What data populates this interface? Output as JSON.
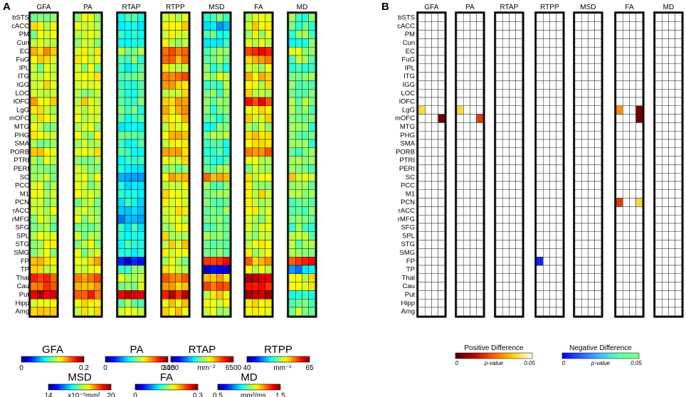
{
  "panels": {
    "a": "A",
    "b": "B"
  },
  "chart_data": [
    {
      "type": "heatmap",
      "panel": "A",
      "columns": [
        "GFA",
        "PA",
        "RTAP",
        "RTPP",
        "MSD",
        "FA",
        "MD"
      ],
      "rows": [
        "bSTS",
        "cACC",
        "PM",
        "Cun",
        "EC",
        "FuG",
        "IPL",
        "ITG",
        "IGG",
        "LOC",
        "lOFC",
        "LgG",
        "mOFC",
        "MTG",
        "PHG",
        "SMA",
        "PORB",
        "PTRI",
        "PERI",
        "SC",
        "PCC",
        "M1",
        "PCN",
        "rACC",
        "rMFG",
        "SFG",
        "SPL",
        "STG",
        "SMG",
        "FP",
        "TP",
        "Thal",
        "Cau",
        "Put",
        "Hipp",
        "Amg"
      ],
      "subcolumns_per_metric": 4,
      "value_scale": "normalized 0-1 along each metric colorbar",
      "row_levels": {
        "GFA": [
          0.55,
          0.6,
          0.55,
          0.55,
          0.72,
          0.62,
          0.55,
          0.62,
          0.6,
          0.58,
          0.66,
          0.6,
          0.6,
          0.55,
          0.6,
          0.55,
          0.62,
          0.55,
          0.5,
          0.55,
          0.55,
          0.6,
          0.55,
          0.58,
          0.55,
          0.52,
          0.55,
          0.58,
          0.55,
          0.7,
          0.6,
          0.82,
          0.78,
          0.9,
          0.62,
          0.65
        ],
        "PA": [
          0.55,
          0.58,
          0.55,
          0.52,
          0.62,
          0.6,
          0.55,
          0.6,
          0.58,
          0.55,
          0.62,
          0.58,
          0.6,
          0.55,
          0.58,
          0.55,
          0.6,
          0.55,
          0.52,
          0.55,
          0.55,
          0.58,
          0.55,
          0.55,
          0.55,
          0.52,
          0.55,
          0.55,
          0.55,
          0.66,
          0.6,
          0.75,
          0.72,
          0.8,
          0.6,
          0.62
        ],
        "RTAP": [
          0.45,
          0.42,
          0.45,
          0.4,
          0.5,
          0.45,
          0.42,
          0.45,
          0.42,
          0.45,
          0.48,
          0.45,
          0.42,
          0.4,
          0.45,
          0.42,
          0.4,
          0.38,
          0.35,
          0.3,
          0.4,
          0.42,
          0.4,
          0.38,
          0.25,
          0.38,
          0.4,
          0.42,
          0.4,
          0.12,
          0.5,
          0.6,
          0.55,
          0.9,
          0.5,
          0.55
        ],
        "RTPP": [
          0.6,
          0.65,
          0.6,
          0.58,
          0.75,
          0.72,
          0.62,
          0.8,
          0.68,
          0.62,
          0.7,
          0.68,
          0.65,
          0.6,
          0.68,
          0.6,
          0.72,
          0.62,
          0.55,
          0.7,
          0.6,
          0.65,
          0.6,
          0.62,
          0.6,
          0.58,
          0.6,
          0.62,
          0.6,
          0.55,
          0.62,
          0.75,
          0.72,
          0.9,
          0.62,
          0.65
        ],
        "MSD": [
          0.45,
          0.3,
          0.45,
          0.42,
          0.5,
          0.5,
          0.45,
          0.55,
          0.5,
          0.5,
          0.52,
          0.48,
          0.45,
          0.45,
          0.5,
          0.45,
          0.45,
          0.45,
          0.5,
          0.72,
          0.5,
          0.5,
          0.45,
          0.48,
          0.45,
          0.45,
          0.48,
          0.5,
          0.48,
          0.82,
          0.1,
          0.7,
          0.75,
          0.62,
          0.58,
          0.55
        ],
        "FA": [
          0.6,
          0.62,
          0.58,
          0.55,
          0.85,
          0.7,
          0.55,
          0.65,
          0.6,
          0.6,
          0.82,
          0.6,
          0.62,
          0.55,
          0.68,
          0.6,
          0.75,
          0.6,
          0.55,
          0.6,
          0.58,
          0.62,
          0.6,
          0.6,
          0.55,
          0.55,
          0.58,
          0.6,
          0.58,
          0.72,
          0.6,
          0.9,
          0.85,
          0.95,
          0.62,
          0.65
        ],
        "MD": [
          0.48,
          0.45,
          0.48,
          0.45,
          0.55,
          0.5,
          0.45,
          0.55,
          0.5,
          0.5,
          0.52,
          0.5,
          0.48,
          0.48,
          0.52,
          0.48,
          0.5,
          0.48,
          0.5,
          0.62,
          0.5,
          0.5,
          0.48,
          0.5,
          0.48,
          0.48,
          0.5,
          0.52,
          0.5,
          0.82,
          0.3,
          0.6,
          0.62,
          0.4,
          0.5,
          0.52
        ]
      }
    },
    {
      "type": "heatmap",
      "panel": "B",
      "columns": [
        "GFA",
        "PA",
        "RTAP",
        "RTPP",
        "MSD",
        "FA",
        "MD"
      ],
      "rows": [
        "bSTS",
        "cACC",
        "PM",
        "Cun",
        "EC",
        "FuG",
        "IPL",
        "ITG",
        "IGG",
        "LOC",
        "lOFC",
        "LgG",
        "mOFC",
        "MTG",
        "PHG",
        "SMA",
        "PORB",
        "PTRI",
        "PERI",
        "SC",
        "PCC",
        "M1",
        "PCN",
        "rACC",
        "rMFG",
        "SFG",
        "SPL",
        "STG",
        "SMG",
        "FP",
        "TP",
        "Thal",
        "Cau",
        "Put",
        "Hipp",
        "Amg"
      ],
      "subcolumns_per_metric": 4,
      "significant_cells": [
        {
          "metric": "GFA",
          "row": "LgG",
          "sub": 0,
          "p": 0.04,
          "sign": "positive"
        },
        {
          "metric": "GFA",
          "row": "mOFC",
          "sub": 3,
          "p": 0.004,
          "sign": "positive"
        },
        {
          "metric": "PA",
          "row": "LgG",
          "sub": 0,
          "p": 0.04,
          "sign": "positive"
        },
        {
          "metric": "PA",
          "row": "mOFC",
          "sub": 3,
          "p": 0.02,
          "sign": "positive"
        },
        {
          "metric": "RTPP",
          "row": "FP",
          "sub": 0,
          "p": 0.005,
          "sign": "negative"
        },
        {
          "metric": "FA",
          "row": "LgG",
          "sub": 0,
          "p": 0.03,
          "sign": "positive"
        },
        {
          "metric": "FA",
          "row": "LgG",
          "sub": 3,
          "p": 0.005,
          "sign": "positive"
        },
        {
          "metric": "FA",
          "row": "mOFC",
          "sub": 3,
          "p": 0.005,
          "sign": "positive"
        },
        {
          "metric": "FA",
          "row": "PCN",
          "sub": 0,
          "p": 0.02,
          "sign": "positive"
        },
        {
          "metric": "FA",
          "row": "PCN",
          "sub": 3,
          "p": 0.04,
          "sign": "positive"
        }
      ]
    }
  ],
  "colorbars": [
    {
      "title": "GFA",
      "min": "0",
      "max": "0.2",
      "unit": ""
    },
    {
      "title": "PA",
      "min": "0",
      "max": "0.15",
      "unit": ""
    },
    {
      "title": "RTAP",
      "min": "3000",
      "max": "6500",
      "unit": "mm⁻²"
    },
    {
      "title": "RTPP",
      "min": "40",
      "max": "65",
      "unit": "mm⁻¹"
    },
    {
      "title": "MSD",
      "min": "14",
      "max": "20",
      "unit": "x10⁻⁵mm²"
    },
    {
      "title": "FA",
      "min": "0",
      "max": "0.3",
      "unit": ""
    },
    {
      "title": "MD",
      "min": "0.5",
      "max": "1.5",
      "unit": "mm²/ms"
    }
  ],
  "pbars": [
    {
      "title": "Positive Difference",
      "min": "0",
      "mid": "p-value",
      "max": "0.05",
      "colors": [
        "#4a0000",
        "#c00000",
        "#ff6000",
        "#ffd000",
        "#ffffff"
      ]
    },
    {
      "title": "Negative Difference",
      "min": "0",
      "mid": "p-value",
      "max": "0.05",
      "colors": [
        "#0000ff",
        "#3060ff",
        "#40c0ff",
        "#60ffb0",
        "#80ff80"
      ]
    }
  ]
}
